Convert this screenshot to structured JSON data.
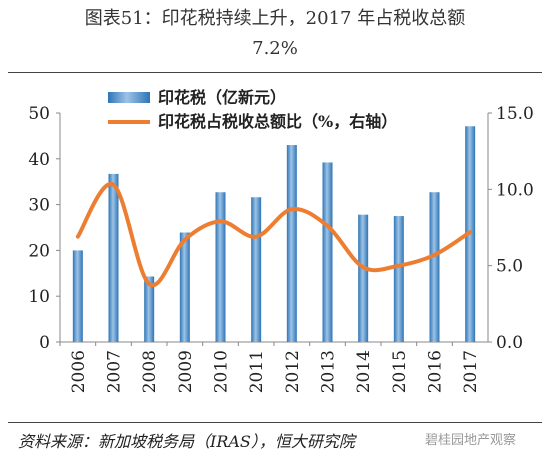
{
  "figure": {
    "title_line1": "图表51：印花税持续上升，2017 年占税收总额",
    "title_line2": "7.2%"
  },
  "chart_data": {
    "type": "bar",
    "categories": [
      "2006",
      "2007",
      "2008",
      "2009",
      "2010",
      "2011",
      "2012",
      "2013",
      "2014",
      "2015",
      "2016",
      "2017"
    ],
    "series": [
      {
        "name": "印花税（亿新元）",
        "type": "bar",
        "axis": "left",
        "color": "#5b9bd5",
        "values": [
          20.0,
          36.7,
          14.3,
          23.9,
          32.7,
          31.6,
          43.0,
          39.2,
          27.8,
          27.5,
          32.7,
          47.1
        ]
      },
      {
        "name": "印花税占税收总额比（%，右轴）",
        "type": "line",
        "axis": "right",
        "color": "#ed7d31",
        "values": [
          6.9,
          10.3,
          3.8,
          6.7,
          7.9,
          6.9,
          8.7,
          7.6,
          4.9,
          5.0,
          5.7,
          7.2
        ]
      }
    ],
    "ylim_left": [
      0,
      50
    ],
    "ylim_right": [
      0,
      15
    ],
    "yticks_left": [
      "0",
      "10",
      "20",
      "30",
      "40",
      "50"
    ],
    "yticks_right": [
      "0.0",
      "5.0",
      "10.0",
      "15.0"
    ],
    "legend_position": "top-left"
  },
  "source": "资料来源：新加坡税务局（IRAS），恒大研究院",
  "watermark": "碧桂园地产观察"
}
